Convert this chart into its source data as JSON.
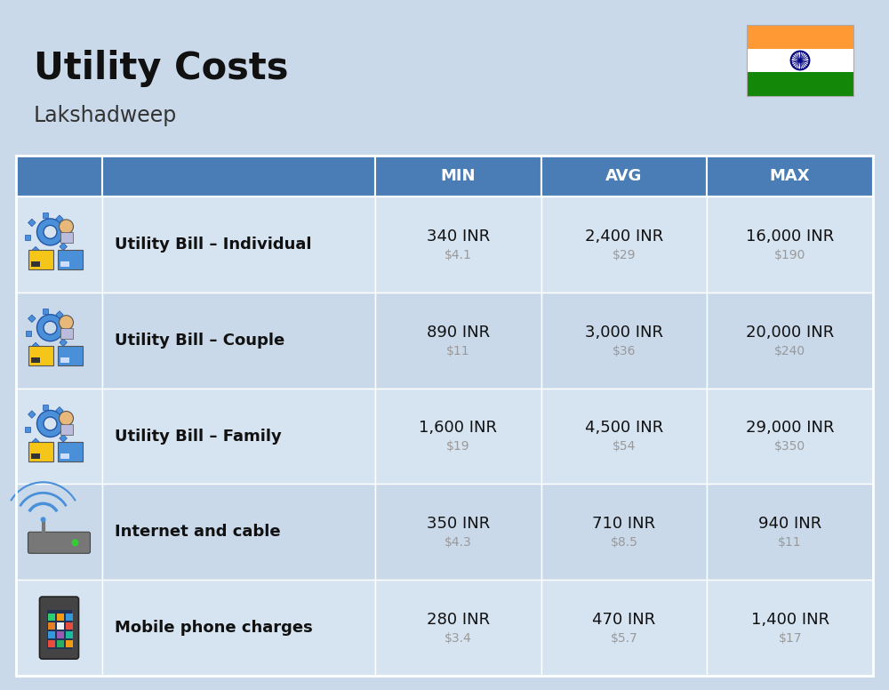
{
  "title": "Utility Costs",
  "subtitle": "Lakshadweep",
  "background_color": "#c9d9ea",
  "header_color": "#4a7db5",
  "header_text_color": "#ffffff",
  "row_colors": [
    "#d6e3f0",
    "#c9d9ea"
  ],
  "separator_color": "#ffffff",
  "col_headers": [
    "MIN",
    "AVG",
    "MAX"
  ],
  "rows": [
    {
      "label": "Utility Bill – Individual",
      "min_inr": "340 INR",
      "min_usd": "$4.1",
      "avg_inr": "2,400 INR",
      "avg_usd": "$29",
      "max_inr": "16,000 INR",
      "max_usd": "$190",
      "icon": "utility"
    },
    {
      "label": "Utility Bill – Couple",
      "min_inr": "890 INR",
      "min_usd": "$11",
      "avg_inr": "3,000 INR",
      "avg_usd": "$36",
      "max_inr": "20,000 INR",
      "max_usd": "$240",
      "icon": "utility"
    },
    {
      "label": "Utility Bill – Family",
      "min_inr": "1,600 INR",
      "min_usd": "$19",
      "avg_inr": "4,500 INR",
      "avg_usd": "$54",
      "max_inr": "29,000 INR",
      "max_usd": "$350",
      "icon": "utility"
    },
    {
      "label": "Internet and cable",
      "min_inr": "350 INR",
      "min_usd": "$4.3",
      "avg_inr": "710 INR",
      "avg_usd": "$8.5",
      "max_inr": "940 INR",
      "max_usd": "$11",
      "icon": "internet"
    },
    {
      "label": "Mobile phone charges",
      "min_inr": "280 INR",
      "min_usd": "$3.4",
      "avg_inr": "470 INR",
      "avg_usd": "$5.7",
      "max_inr": "1,400 INR",
      "max_usd": "$17",
      "icon": "mobile"
    }
  ],
  "title_fontsize": 30,
  "subtitle_fontsize": 17,
  "header_fontsize": 13,
  "label_fontsize": 13,
  "value_fontsize": 13,
  "usd_fontsize": 10,
  "flag_colors": [
    "#FF9933",
    "#FFFFFF",
    "#138808"
  ],
  "flag_chakra_color": "#000080",
  "label_color": "#111111",
  "usd_color": "#999999",
  "white": "#ffffff"
}
